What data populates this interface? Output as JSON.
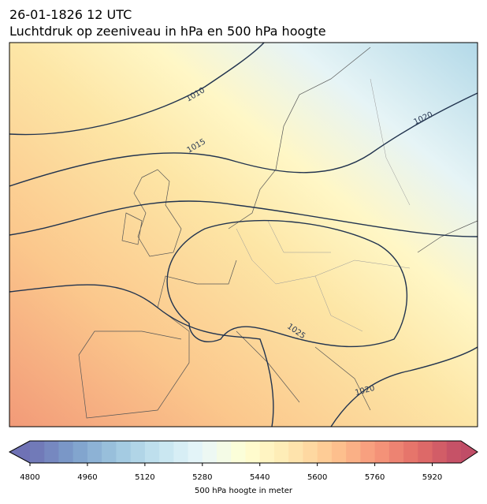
{
  "header": {
    "title": "26-01-1826 12 UTC",
    "subtitle": "Luchtdruk op zeeniveau in hPa en 500 hPa hoogte"
  },
  "map": {
    "contour_labels": [
      1010,
      1015,
      1020,
      1025,
      1020
    ]
  },
  "colorbar": {
    "label": "500 hPa hoogte in meter",
    "lim": [
      4800,
      6000
    ],
    "step": 40,
    "ticks": [
      4800,
      4960,
      5120,
      5280,
      5440,
      5600,
      5760,
      5920
    ]
  }
}
